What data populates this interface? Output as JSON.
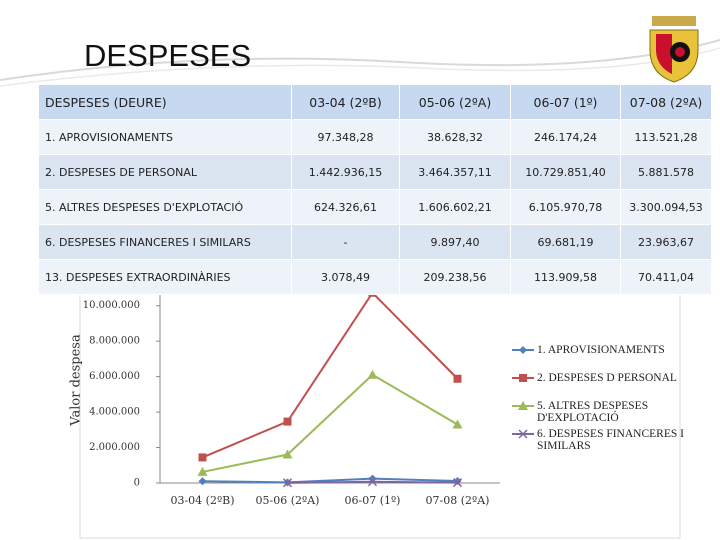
{
  "title": "DESPESES",
  "table": {
    "header": [
      "DESPESES (DEURE)",
      "03-04 (2ºB)",
      "05-06 (2ºA)",
      "06-07 (1º)",
      "07-08 (2ºA)"
    ],
    "rows": [
      [
        "1. APROVISIONAMENTS",
        "97.348,28",
        "38.628,32",
        "246.174,24",
        "113.521,28"
      ],
      [
        "2. DESPESES DE PERSONAL",
        "1.442.936,15",
        "3.464.357,11",
        "10.729.851,40",
        "5.881.578"
      ],
      [
        "5.  ALTRES DESPESES D'EXPLOTACIÓ",
        "624.326,61",
        "1.606.602,21",
        "6.105.970,78",
        "3.300.094,53"
      ],
      [
        "6.  DESPESES FINANCERES I SIMILARS",
        "-",
        "9.897,40",
        "69.681,19",
        "23.963,67"
      ],
      [
        "13.  DESPESES EXTRAORDINÀRIES",
        "3.078,49",
        "209.238,56",
        "113.909,58",
        "70.411,04"
      ]
    ]
  },
  "chart_data": {
    "type": "line",
    "y_label": "Valor despesa",
    "categories": [
      "03-04 (2ºB)",
      "05-06 (2ºA)",
      "06-07 (1º)",
      "07-08 (2ºA)"
    ],
    "series": [
      {
        "name": "1. APROVISIONAMENTS",
        "color": "#4f81bd",
        "marker": "diamond",
        "values": [
          97348.28,
          38628.32,
          246174.24,
          113521.28
        ]
      },
      {
        "name": "2. DESPESES D PERSONAL",
        "color": "#c0504d",
        "marker": "square",
        "values": [
          1442936.15,
          3464357.11,
          10729851.4,
          5881578
        ]
      },
      {
        "name": "5. ALTRES DESPESES D'EXPLOTACIÓ",
        "color": "#9bbb59",
        "marker": "triangle",
        "values": [
          624326.61,
          1606602.21,
          6105970.78,
          3300094.53
        ]
      },
      {
        "name": "6. DESPESES FINANCERES I SIMILARS",
        "color": "#8064a2",
        "marker": "x",
        "values": [
          null,
          9897.4,
          69681.19,
          23963.67
        ]
      }
    ],
    "ylim": [
      0,
      11000000
    ],
    "yticks": [
      0,
      {
        "value": 2000000,
        "label": "2.000.000"
      },
      {
        "value": 4000000,
        "label": "4.000.000"
      },
      {
        "value": 6000000,
        "label": "6.000.000"
      },
      {
        "value": 8000000,
        "label": "8.000.000"
      },
      {
        "value": 10000000,
        "label": "10.000.000"
      }
    ]
  }
}
